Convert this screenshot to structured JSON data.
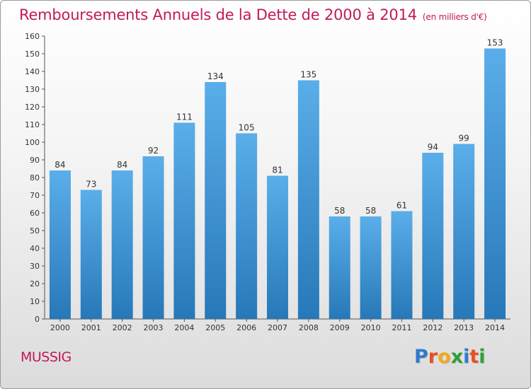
{
  "header": {
    "title": "Remboursements Annuels de la Dette de 2000 à 2014",
    "unit": "(en milliers d'€)"
  },
  "footer": {
    "commune": "MUSSIG",
    "logo_letters": [
      "P",
      "r",
      "o",
      "x",
      "i",
      "t",
      "i"
    ]
  },
  "colors": {
    "title": "#c2185b",
    "bar_top": "#5aaee9",
    "bar_bottom": "#2778b8",
    "logo": [
      "#2e7bd1",
      "#e8501e",
      "#f3a81a",
      "#2e9e3b",
      "#2e7bd1",
      "#e8501e",
      "#2e9e3b"
    ]
  },
  "chart_data": {
    "type": "bar",
    "title": "Remboursements Annuels de la Dette de 2000 à 2014",
    "categories": [
      "2000",
      "2001",
      "2002",
      "2003",
      "2004",
      "2005",
      "2006",
      "2007",
      "2008",
      "2009",
      "2010",
      "2011",
      "2012",
      "2013",
      "2014"
    ],
    "values": [
      84,
      73,
      84,
      92,
      111,
      134,
      105,
      81,
      135,
      58,
      58,
      61,
      94,
      99,
      153
    ],
    "ylim": [
      0,
      160
    ],
    "ytick_step": 10,
    "grid": false,
    "data_labels": true
  }
}
